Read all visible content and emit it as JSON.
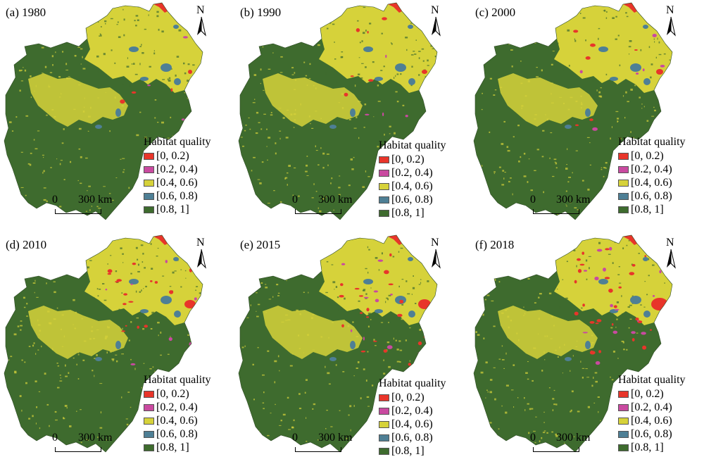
{
  "legend_colors": {
    "q0": "#e8352a",
    "q1": "#c94aa0",
    "q2": "#d6d23a",
    "q3": "#4e7f95",
    "q4": "#3e6b2e"
  },
  "panels": [
    {
      "title": "(a) 1980",
      "north_label": "N",
      "legend": {
        "title": "Habitat quality",
        "items": [
          {
            "label": "[0, 0.2)",
            "color": "#e8352a"
          },
          {
            "label": "[0.2, 0.4)",
            "color": "#c94aa0"
          },
          {
            "label": "[0.4, 0.6)",
            "color": "#d6d23a"
          },
          {
            "label": "[0.6, 0.8)",
            "color": "#4e7f95"
          },
          {
            "label": "[0.8, 1]",
            "color": "#3e6b2e"
          }
        ]
      },
      "scale": {
        "zero": "0",
        "value": "300 km"
      }
    },
    {
      "title": "(b) 1990",
      "north_label": "N",
      "legend": {
        "title": "Habitat quality",
        "items": [
          {
            "label": "[0, 0.2)",
            "color": "#e8352a"
          },
          {
            "label": "[0.2, 0.4)",
            "color": "#c94aa0"
          },
          {
            "label": "[0.4, 0.6)",
            "color": "#d6d23a"
          },
          {
            "label": "[0.6, 0.8)",
            "color": "#4e7f95"
          },
          {
            "label": "[0.8, 1]",
            "color": "#3e6b2e"
          }
        ]
      },
      "scale": {
        "zero": "0",
        "value": "300 km"
      }
    },
    {
      "title": "(c) 2000",
      "north_label": "N",
      "legend": {
        "title": "Habitat quality",
        "items": [
          {
            "label": "[0, 0.2)",
            "color": "#e8352a"
          },
          {
            "label": "[0.2, 0.4)",
            "color": "#c94aa0"
          },
          {
            "label": "[0.4, 0.6)",
            "color": "#d6d23a"
          },
          {
            "label": "[0.6, 0.8)",
            "color": "#4e7f95"
          },
          {
            "label": "[0.8, 1]",
            "color": "#3e6b2e"
          }
        ]
      },
      "scale": {
        "zero": "0",
        "value": "300 km"
      }
    },
    {
      "title": "(d) 2010",
      "north_label": "N",
      "legend": {
        "title": "Habitat quality",
        "items": [
          {
            "label": "[0, 0.2)",
            "color": "#e8352a"
          },
          {
            "label": "[0.2, 0.4)",
            "color": "#c94aa0"
          },
          {
            "label": "[0.4, 0.6)",
            "color": "#d6d23a"
          },
          {
            "label": "[0.6, 0.8)",
            "color": "#4e7f95"
          },
          {
            "label": "[0.8, 1]",
            "color": "#3e6b2e"
          }
        ]
      },
      "scale": {
        "zero": "0",
        "value": "300 km"
      }
    },
    {
      "title": "(e) 2015",
      "north_label": "N",
      "legend": {
        "title": "Habitat quality",
        "items": [
          {
            "label": "[0, 0.2)",
            "color": "#e8352a"
          },
          {
            "label": "[0.2, 0.4)",
            "color": "#c94aa0"
          },
          {
            "label": "[0.4, 0.6)",
            "color": "#d6d23a"
          },
          {
            "label": "[0.6, 0.8)",
            "color": "#4e7f95"
          },
          {
            "label": "[0.8, 1]",
            "color": "#3e6b2e"
          }
        ]
      },
      "scale": {
        "zero": "0",
        "value": "300 km"
      }
    },
    {
      "title": "(f) 2018",
      "north_label": "N",
      "legend": {
        "title": "Habitat quality",
        "items": [
          {
            "label": "[0, 0.2)",
            "color": "#e8352a"
          },
          {
            "label": "[0.2, 0.4)",
            "color": "#c94aa0"
          },
          {
            "label": "[0.4, 0.6)",
            "color": "#d6d23a"
          },
          {
            "label": "[0.6, 0.8)",
            "color": "#4e7f95"
          },
          {
            "label": "[0.8, 1]",
            "color": "#3e6b2e"
          }
        ]
      },
      "scale": {
        "zero": "0",
        "value": "300 km"
      }
    }
  ]
}
